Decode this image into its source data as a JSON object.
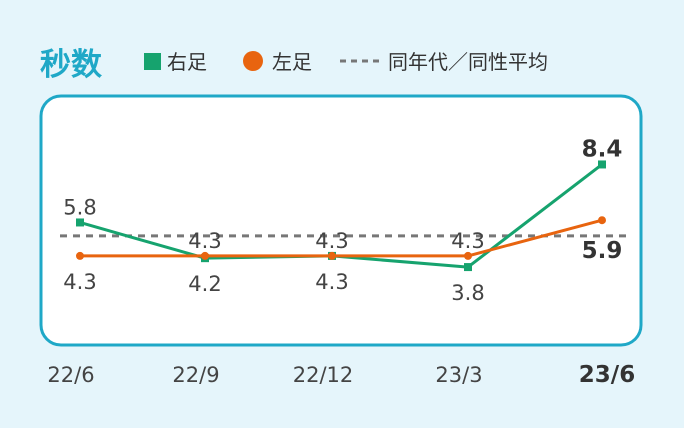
{
  "colors": {
    "background": "#e5f5fb",
    "accent": "#1fa8c7",
    "right_foot": "#16a36e",
    "left_foot": "#e8640f",
    "average": "#777777"
  },
  "chart_data": {
    "type": "line",
    "title": "秒数",
    "categories": [
      "22/6",
      "22/9",
      "22/12",
      "23/3",
      "23/6"
    ],
    "highlight_category": "23/6",
    "ylim": [
      3.4,
      8.6
    ],
    "grid": false,
    "legend_placement": "top",
    "series": [
      {
        "name": "右足",
        "color": "#16a36e",
        "marker": "square",
        "values": [
          5.8,
          4.2,
          4.3,
          3.8,
          8.4
        ]
      },
      {
        "name": "左足",
        "color": "#e8640f",
        "marker": "circle",
        "values": [
          4.3,
          4.3,
          4.3,
          4.3,
          5.9
        ]
      }
    ],
    "reference_line": {
      "name": "同年代／同性平均",
      "style": "dashed",
      "color": "#777777",
      "value": 5.2
    }
  }
}
